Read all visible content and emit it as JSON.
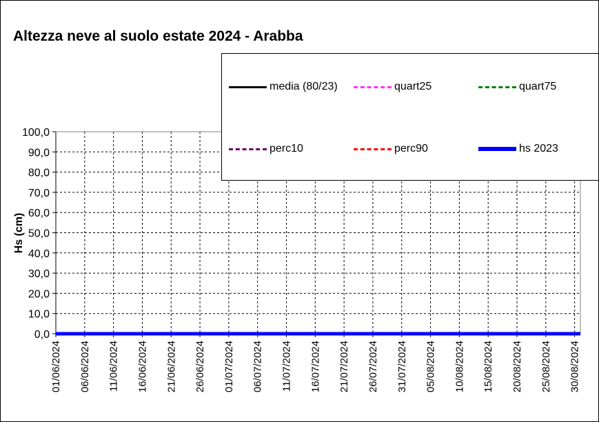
{
  "chart_data": {
    "type": "line",
    "title": "Altezza neve al suolo estate 2024 - Arabba",
    "ylabel": "Hs (cm)",
    "xlabel": "",
    "ylim": [
      0,
      100
    ],
    "ytick_labels": [
      "0,0",
      "10,0",
      "20,0",
      "30,0",
      "40,0",
      "50,0",
      "60,0",
      "70,0",
      "80,0",
      "90,0",
      "100,0"
    ],
    "xtick_labels": [
      "01/06/2024",
      "06/06/2024",
      "11/06/2024",
      "16/06/2024",
      "21/06/2024",
      "26/06/2024",
      "01/07/2024",
      "06/07/2024",
      "11/07/2024",
      "16/07/2024",
      "21/07/2024",
      "26/07/2024",
      "31/07/2024",
      "05/08/2024",
      "10/08/2024",
      "15/08/2024",
      "20/08/2024",
      "25/08/2024",
      "30/08/2024"
    ],
    "x_range": [
      "01/06/2024",
      "31/08/2024"
    ],
    "grid": true,
    "legend_position": "top-right",
    "series": [
      {
        "name": "media (80/23)",
        "color": "#000000",
        "style": "solid",
        "values": []
      },
      {
        "name": "quart25",
        "color": "#ff33ff",
        "style": "dashed",
        "values": []
      },
      {
        "name": "quart75",
        "color": "#008000",
        "style": "dashed",
        "values": []
      },
      {
        "name": "perc10",
        "color": "#660066",
        "style": "dashed",
        "values": []
      },
      {
        "name": "perc90",
        "color": "#ff0000",
        "style": "dashed",
        "values": []
      },
      {
        "name": "hs 2023",
        "color": "#0000ff",
        "style": "solid-thick",
        "x": [
          "01/06/2024",
          "31/08/2024"
        ],
        "values": [
          0,
          0
        ]
      }
    ]
  }
}
